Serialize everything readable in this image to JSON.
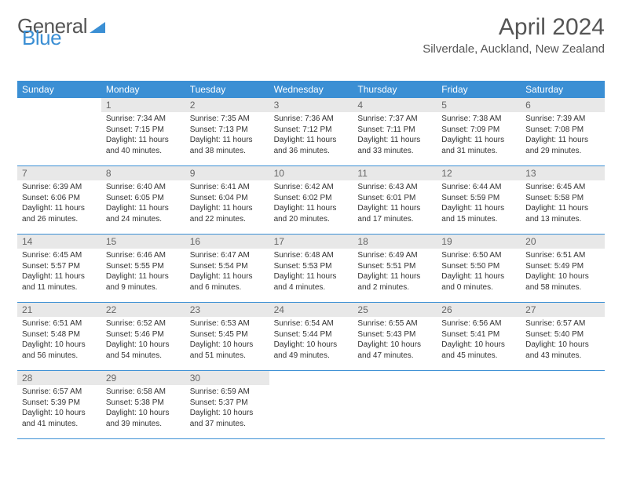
{
  "logo": {
    "part1": "General",
    "part2": "Blue"
  },
  "title": "April 2024",
  "location": "Silverdale, Auckland, New Zealand",
  "weekdays": [
    "Sunday",
    "Monday",
    "Tuesday",
    "Wednesday",
    "Thursday",
    "Friday",
    "Saturday"
  ],
  "colors": {
    "header_bg": "#3b8fd4",
    "daynum_bg": "#e8e8e8",
    "text": "#333333",
    "title": "#555555"
  },
  "weeks": [
    [
      {
        "n": "",
        "lines": []
      },
      {
        "n": "1",
        "lines": [
          "Sunrise: 7:34 AM",
          "Sunset: 7:15 PM",
          "Daylight: 11 hours",
          "and 40 minutes."
        ]
      },
      {
        "n": "2",
        "lines": [
          "Sunrise: 7:35 AM",
          "Sunset: 7:13 PM",
          "Daylight: 11 hours",
          "and 38 minutes."
        ]
      },
      {
        "n": "3",
        "lines": [
          "Sunrise: 7:36 AM",
          "Sunset: 7:12 PM",
          "Daylight: 11 hours",
          "and 36 minutes."
        ]
      },
      {
        "n": "4",
        "lines": [
          "Sunrise: 7:37 AM",
          "Sunset: 7:11 PM",
          "Daylight: 11 hours",
          "and 33 minutes."
        ]
      },
      {
        "n": "5",
        "lines": [
          "Sunrise: 7:38 AM",
          "Sunset: 7:09 PM",
          "Daylight: 11 hours",
          "and 31 minutes."
        ]
      },
      {
        "n": "6",
        "lines": [
          "Sunrise: 7:39 AM",
          "Sunset: 7:08 PM",
          "Daylight: 11 hours",
          "and 29 minutes."
        ]
      }
    ],
    [
      {
        "n": "7",
        "lines": [
          "Sunrise: 6:39 AM",
          "Sunset: 6:06 PM",
          "Daylight: 11 hours",
          "and 26 minutes."
        ]
      },
      {
        "n": "8",
        "lines": [
          "Sunrise: 6:40 AM",
          "Sunset: 6:05 PM",
          "Daylight: 11 hours",
          "and 24 minutes."
        ]
      },
      {
        "n": "9",
        "lines": [
          "Sunrise: 6:41 AM",
          "Sunset: 6:04 PM",
          "Daylight: 11 hours",
          "and 22 minutes."
        ]
      },
      {
        "n": "10",
        "lines": [
          "Sunrise: 6:42 AM",
          "Sunset: 6:02 PM",
          "Daylight: 11 hours",
          "and 20 minutes."
        ]
      },
      {
        "n": "11",
        "lines": [
          "Sunrise: 6:43 AM",
          "Sunset: 6:01 PM",
          "Daylight: 11 hours",
          "and 17 minutes."
        ]
      },
      {
        "n": "12",
        "lines": [
          "Sunrise: 6:44 AM",
          "Sunset: 5:59 PM",
          "Daylight: 11 hours",
          "and 15 minutes."
        ]
      },
      {
        "n": "13",
        "lines": [
          "Sunrise: 6:45 AM",
          "Sunset: 5:58 PM",
          "Daylight: 11 hours",
          "and 13 minutes."
        ]
      }
    ],
    [
      {
        "n": "14",
        "lines": [
          "Sunrise: 6:45 AM",
          "Sunset: 5:57 PM",
          "Daylight: 11 hours",
          "and 11 minutes."
        ]
      },
      {
        "n": "15",
        "lines": [
          "Sunrise: 6:46 AM",
          "Sunset: 5:55 PM",
          "Daylight: 11 hours",
          "and 9 minutes."
        ]
      },
      {
        "n": "16",
        "lines": [
          "Sunrise: 6:47 AM",
          "Sunset: 5:54 PM",
          "Daylight: 11 hours",
          "and 6 minutes."
        ]
      },
      {
        "n": "17",
        "lines": [
          "Sunrise: 6:48 AM",
          "Sunset: 5:53 PM",
          "Daylight: 11 hours",
          "and 4 minutes."
        ]
      },
      {
        "n": "18",
        "lines": [
          "Sunrise: 6:49 AM",
          "Sunset: 5:51 PM",
          "Daylight: 11 hours",
          "and 2 minutes."
        ]
      },
      {
        "n": "19",
        "lines": [
          "Sunrise: 6:50 AM",
          "Sunset: 5:50 PM",
          "Daylight: 11 hours",
          "and 0 minutes."
        ]
      },
      {
        "n": "20",
        "lines": [
          "Sunrise: 6:51 AM",
          "Sunset: 5:49 PM",
          "Daylight: 10 hours",
          "and 58 minutes."
        ]
      }
    ],
    [
      {
        "n": "21",
        "lines": [
          "Sunrise: 6:51 AM",
          "Sunset: 5:48 PM",
          "Daylight: 10 hours",
          "and 56 minutes."
        ]
      },
      {
        "n": "22",
        "lines": [
          "Sunrise: 6:52 AM",
          "Sunset: 5:46 PM",
          "Daylight: 10 hours",
          "and 54 minutes."
        ]
      },
      {
        "n": "23",
        "lines": [
          "Sunrise: 6:53 AM",
          "Sunset: 5:45 PM",
          "Daylight: 10 hours",
          "and 51 minutes."
        ]
      },
      {
        "n": "24",
        "lines": [
          "Sunrise: 6:54 AM",
          "Sunset: 5:44 PM",
          "Daylight: 10 hours",
          "and 49 minutes."
        ]
      },
      {
        "n": "25",
        "lines": [
          "Sunrise: 6:55 AM",
          "Sunset: 5:43 PM",
          "Daylight: 10 hours",
          "and 47 minutes."
        ]
      },
      {
        "n": "26",
        "lines": [
          "Sunrise: 6:56 AM",
          "Sunset: 5:41 PM",
          "Daylight: 10 hours",
          "and 45 minutes."
        ]
      },
      {
        "n": "27",
        "lines": [
          "Sunrise: 6:57 AM",
          "Sunset: 5:40 PM",
          "Daylight: 10 hours",
          "and 43 minutes."
        ]
      }
    ],
    [
      {
        "n": "28",
        "lines": [
          "Sunrise: 6:57 AM",
          "Sunset: 5:39 PM",
          "Daylight: 10 hours",
          "and 41 minutes."
        ]
      },
      {
        "n": "29",
        "lines": [
          "Sunrise: 6:58 AM",
          "Sunset: 5:38 PM",
          "Daylight: 10 hours",
          "and 39 minutes."
        ]
      },
      {
        "n": "30",
        "lines": [
          "Sunrise: 6:59 AM",
          "Sunset: 5:37 PM",
          "Daylight: 10 hours",
          "and 37 minutes."
        ]
      },
      {
        "n": "",
        "lines": []
      },
      {
        "n": "",
        "lines": []
      },
      {
        "n": "",
        "lines": []
      },
      {
        "n": "",
        "lines": []
      }
    ]
  ]
}
